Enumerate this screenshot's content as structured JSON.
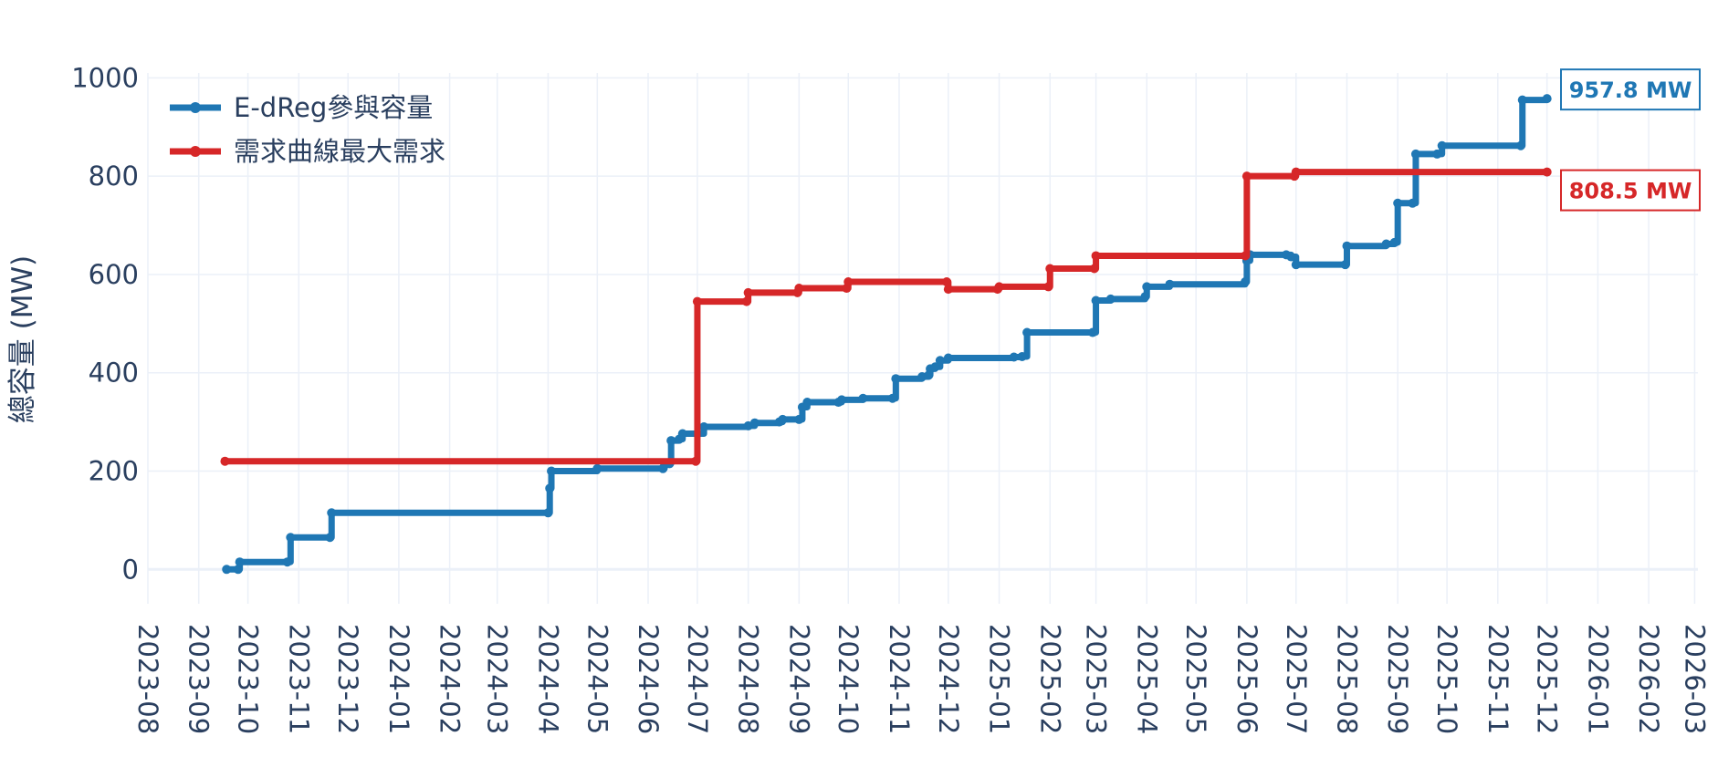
{
  "chart_data": {
    "type": "line",
    "title": "",
    "xlabel": "",
    "ylabel": "總容量 (MW)",
    "xlim": [
      "2023-08-01",
      "2026-03-03"
    ],
    "ylim": [
      -70,
      1010
    ],
    "x_ticks": [
      "2023-08",
      "2023-09",
      "2023-10",
      "2023-11",
      "2023-12",
      "2024-01",
      "2024-02",
      "2024-03",
      "2024-04",
      "2024-05",
      "2024-06",
      "2024-07",
      "2024-08",
      "2024-09",
      "2024-10",
      "2024-11",
      "2024-12",
      "2025-01",
      "2025-02",
      "2025-03",
      "2025-04",
      "2025-05",
      "2025-06",
      "2025-07",
      "2025-08",
      "2025-09",
      "2025-10",
      "2025-11",
      "2025-12",
      "2026-01",
      "2026-02",
      "2026-03"
    ],
    "y_ticks": [
      0,
      200,
      400,
      600,
      800,
      1000
    ],
    "grid": true,
    "legend_position": "top-left",
    "series": [
      {
        "name": "E-dReg參與容量",
        "color": "#1f77b4",
        "end_label": "957.8 MW",
        "points": [
          [
            "2023-09-18",
            0
          ],
          [
            "2023-09-25",
            0
          ],
          [
            "2023-09-26",
            15
          ],
          [
            "2023-10-25",
            15
          ],
          [
            "2023-10-27",
            65
          ],
          [
            "2023-11-20",
            65
          ],
          [
            "2023-11-21",
            115
          ],
          [
            "2024-04-01",
            115
          ],
          [
            "2024-04-02",
            165
          ],
          [
            "2024-04-03",
            200
          ],
          [
            "2024-05-01",
            205
          ],
          [
            "2024-06-10",
            205
          ],
          [
            "2024-06-11",
            215
          ],
          [
            "2024-06-14",
            215
          ],
          [
            "2024-06-15",
            262
          ],
          [
            "2024-06-20",
            265
          ],
          [
            "2024-06-22",
            276
          ],
          [
            "2024-07-01",
            276
          ],
          [
            "2024-07-05",
            290
          ],
          [
            "2024-08-01",
            292
          ],
          [
            "2024-08-05",
            298
          ],
          [
            "2024-08-20",
            300
          ],
          [
            "2024-08-22",
            305
          ],
          [
            "2024-09-01",
            305
          ],
          [
            "2024-09-03",
            330
          ],
          [
            "2024-09-06",
            340
          ],
          [
            "2024-09-25",
            340
          ],
          [
            "2024-09-27",
            345
          ],
          [
            "2024-10-10",
            348
          ],
          [
            "2024-10-28",
            348
          ],
          [
            "2024-10-30",
            388
          ],
          [
            "2024-11-15",
            392
          ],
          [
            "2024-11-19",
            395
          ],
          [
            "2024-11-20",
            408
          ],
          [
            "2024-11-23",
            412
          ],
          [
            "2024-11-26",
            425
          ],
          [
            "2024-12-01",
            430
          ],
          [
            "2025-01-10",
            432
          ],
          [
            "2025-01-15",
            433
          ],
          [
            "2025-01-18",
            482
          ],
          [
            "2025-02-27",
            482
          ],
          [
            "2025-03-01",
            547
          ],
          [
            "2025-03-10",
            550
          ],
          [
            "2025-03-31",
            555
          ],
          [
            "2025-04-01",
            575
          ],
          [
            "2025-04-15",
            580
          ],
          [
            "2025-05-31",
            585
          ],
          [
            "2025-06-01",
            628
          ],
          [
            "2025-06-03",
            640
          ],
          [
            "2025-06-25",
            640
          ],
          [
            "2025-06-28",
            636
          ],
          [
            "2025-07-01",
            620
          ],
          [
            "2025-07-31",
            620
          ],
          [
            "2025-08-01",
            658
          ],
          [
            "2025-08-25",
            662
          ],
          [
            "2025-08-30",
            665
          ],
          [
            "2025-09-01",
            745
          ],
          [
            "2025-09-10",
            745
          ],
          [
            "2025-09-12",
            845
          ],
          [
            "2025-09-25",
            845
          ],
          [
            "2025-09-28",
            862
          ],
          [
            "2025-11-15",
            862
          ],
          [
            "2025-11-16",
            955
          ],
          [
            "2025-12-01",
            957.8
          ]
        ]
      },
      {
        "name": "需求曲線最大需求",
        "color": "#d62728",
        "end_label": "808.5 MW",
        "points": [
          [
            "2023-09-17",
            220
          ],
          [
            "2024-06-30",
            220
          ],
          [
            "2024-07-01",
            545
          ],
          [
            "2024-07-31",
            545
          ],
          [
            "2024-08-01",
            563
          ],
          [
            "2024-08-31",
            563
          ],
          [
            "2024-09-01",
            572
          ],
          [
            "2024-09-30",
            572
          ],
          [
            "2024-10-01",
            585
          ],
          [
            "2024-11-30",
            585
          ],
          [
            "2024-12-01",
            570
          ],
          [
            "2024-12-31",
            570
          ],
          [
            "2025-01-01",
            575
          ],
          [
            "2025-01-31",
            575
          ],
          [
            "2025-02-01",
            612
          ],
          [
            "2025-02-28",
            612
          ],
          [
            "2025-03-01",
            638
          ],
          [
            "2025-05-31",
            638
          ],
          [
            "2025-06-01",
            800
          ],
          [
            "2025-06-30",
            800
          ],
          [
            "2025-07-01",
            808.5
          ],
          [
            "2025-12-01",
            808.5
          ]
        ]
      }
    ]
  }
}
